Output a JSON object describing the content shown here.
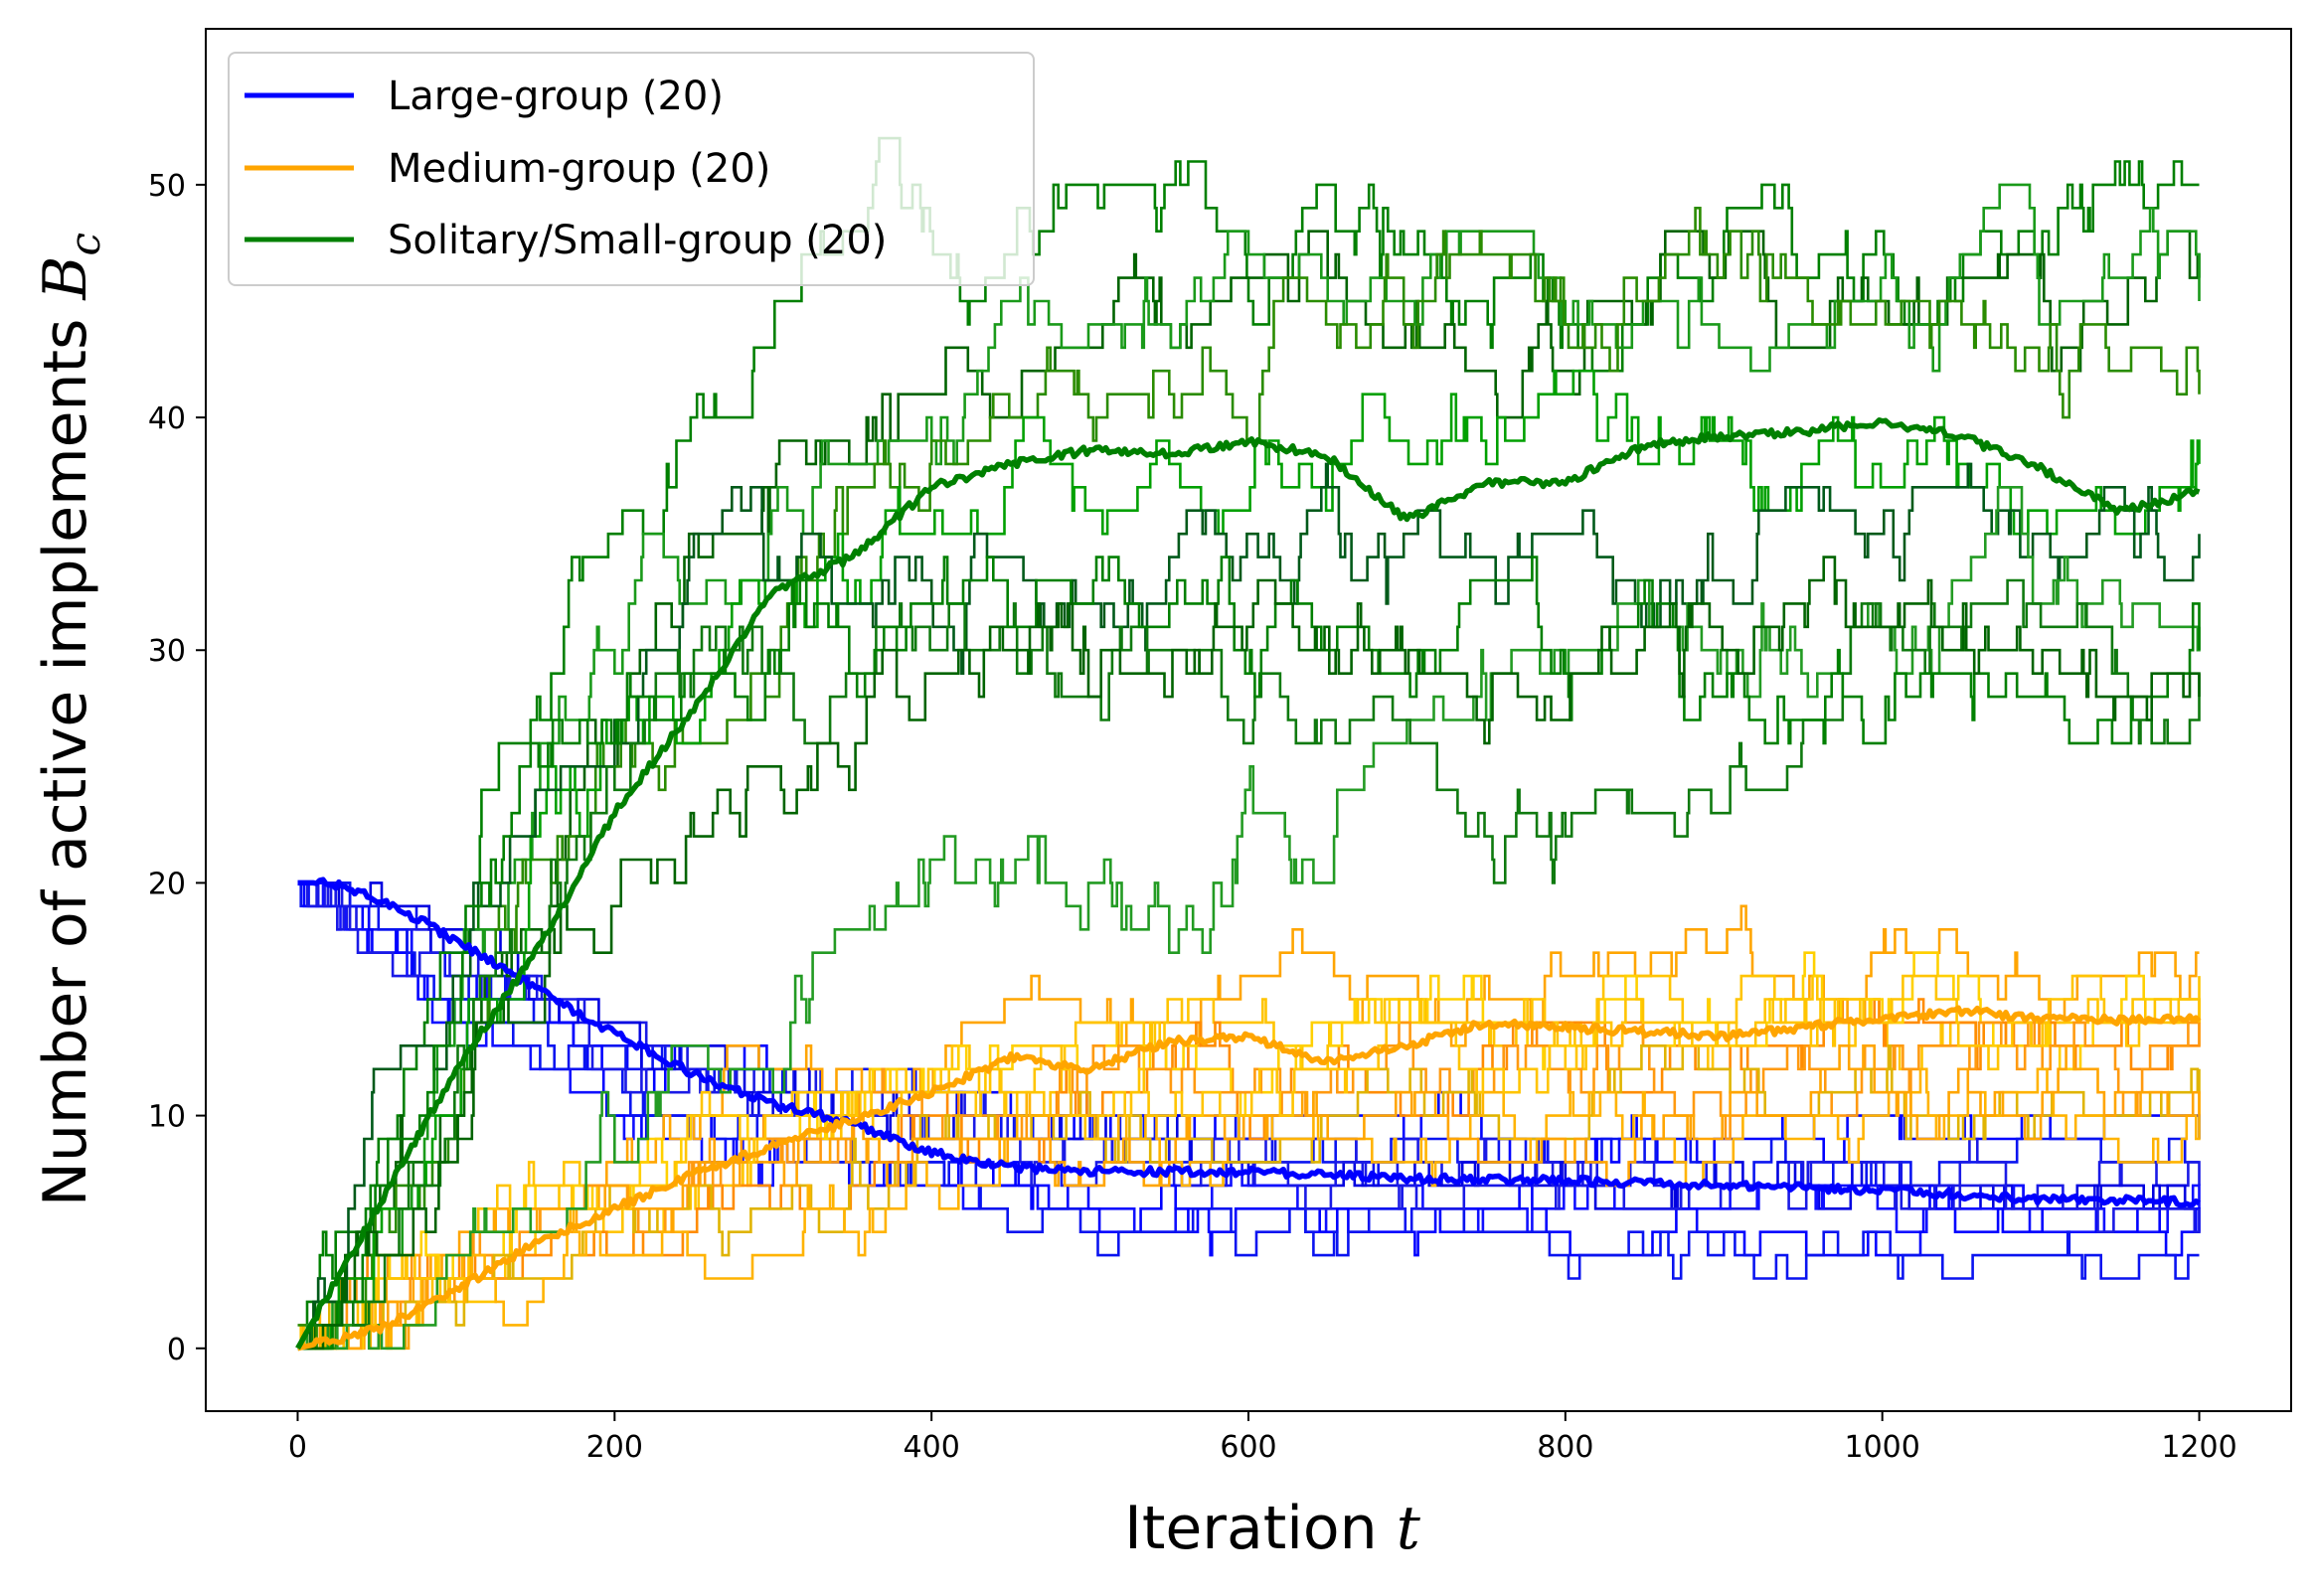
{
  "chart_data": {
    "type": "line",
    "xlabel": "Iteration",
    "xlabel_var": "t",
    "ylabel": "Number of active implements",
    "ylabel_var": "B",
    "ylabel_var_sub": "c",
    "xlim": [
      -58,
      1258
    ],
    "ylim": [
      -2.7,
      56.7
    ],
    "xticks": [
      0,
      200,
      400,
      600,
      800,
      1000,
      1200
    ],
    "yticks": [
      0,
      10,
      20,
      30,
      40,
      50
    ],
    "grid": false,
    "legend_position": "top-left",
    "legend": [
      {
        "label": "Large-group (20)",
        "color": "#0000ff"
      },
      {
        "label": "Medium-group (20)",
        "color": "#ffa500"
      },
      {
        "label": "Solitary/Small-group (20)",
        "color": "#008000"
      }
    ],
    "groups": [
      {
        "name": "Large-group",
        "color": "#0000ff",
        "run_colors": [
          "#0000ff",
          "#0a14f0",
          "#1a1ae6",
          "#0000e0",
          "#1010ff"
        ],
        "start": 20,
        "runs": [
          {
            "seed": 11,
            "n": 20,
            "sigma": 0.7,
            "end": 9
          },
          {
            "seed": 12,
            "n": 20,
            "sigma": 0.7,
            "end": 8
          },
          {
            "seed": 13,
            "n": 20,
            "sigma": 0.7,
            "end": 7
          },
          {
            "seed": 14,
            "n": 20,
            "sigma": 0.7,
            "end": 6
          },
          {
            "seed": 15,
            "n": 20,
            "sigma": 0.7,
            "end": 6
          },
          {
            "seed": 16,
            "n": 20,
            "sigma": 0.7,
            "end": 5
          },
          {
            "seed": 17,
            "n": 20,
            "sigma": 0.7,
            "end": 4
          },
          {
            "seed": 18,
            "n": 20,
            "sigma": 0.7,
            "end": 6
          }
        ],
        "mean": {
          "x": [
            0,
            20,
            40,
            60,
            80,
            100,
            150,
            200,
            250,
            300,
            350,
            400,
            450,
            500,
            600,
            700,
            800,
            900,
            1000,
            1100,
            1200
          ],
          "y": [
            20,
            20,
            19.6,
            19,
            18.3,
            17.5,
            15.5,
            13.5,
            11.8,
            10.5,
            9.7,
            8.4,
            7.8,
            7.6,
            7.6,
            7.3,
            7.2,
            7.0,
            6.8,
            6.4,
            6.3
          ]
        }
      },
      {
        "name": "Medium-group",
        "color": "#ffa500",
        "run_colors": [
          "#ffa500",
          "#ffc400",
          "#ff8c00",
          "#ffd000",
          "#ff9a10",
          "#e0b400",
          "#ffb300"
        ],
        "start": 0,
        "runs": [
          {
            "seed": 21,
            "n": 20,
            "sigma": 1.0,
            "end": 17
          },
          {
            "seed": 22,
            "n": 20,
            "sigma": 1.0,
            "end": 16
          },
          {
            "seed": 23,
            "n": 20,
            "sigma": 1.0,
            "end": 15
          },
          {
            "seed": 24,
            "n": 20,
            "sigma": 1.0,
            "end": 14
          },
          {
            "seed": 25,
            "n": 20,
            "sigma": 1.0,
            "end": 13
          },
          {
            "seed": 26,
            "n": 20,
            "sigma": 1.0,
            "end": 12
          },
          {
            "seed": 27,
            "n": 20,
            "sigma": 1.0,
            "end": 11
          },
          {
            "seed": 28,
            "n": 20,
            "sigma": 1.0,
            "end": 10
          },
          {
            "seed": 29,
            "n": 20,
            "sigma": 1.0,
            "end": 14
          }
        ],
        "mean": {
          "x": [
            0,
            50,
            100,
            150,
            200,
            250,
            300,
            350,
            400,
            450,
            500,
            550,
            600,
            650,
            700,
            750,
            800,
            850,
            900,
            950,
            1000,
            1050,
            1100,
            1150,
            1200
          ],
          "y": [
            0,
            0.8,
            2.5,
            4.5,
            6.0,
            7.5,
            8.7,
            9.8,
            11.0,
            12.5,
            12.0,
            13.2,
            13.4,
            12.3,
            13.0,
            14.0,
            13.8,
            13.6,
            13.4,
            13.8,
            14.2,
            14.5,
            14.2,
            14.1,
            14.2
          ]
        }
      },
      {
        "name": "Solitary/Small-group",
        "color": "#008000",
        "run_colors": [
          "#008000",
          "#006400",
          "#1a9a1a",
          "#2a8c00",
          "#00a000",
          "#005a1a",
          "#239b23",
          "#0f7a0f"
        ],
        "start": 0,
        "runs": [
          {
            "seed": 31,
            "n": 54,
            "sigma": 1.6,
            "end": 50,
            "profile": [
              [
                0,
                0
              ],
              [
                120,
                30
              ],
              [
                300,
                45
              ],
              [
                500,
                50
              ],
              [
                800,
                45
              ],
              [
                1200,
                50
              ]
            ]
          },
          {
            "seed": 32,
            "n": 54,
            "sigma": 1.6,
            "end": 46,
            "profile": [
              [
                0,
                0
              ],
              [
                200,
                30
              ],
              [
                450,
                45
              ],
              [
                700,
                46
              ],
              [
                1000,
                44
              ],
              [
                1200,
                46
              ]
            ]
          },
          {
            "seed": 33,
            "n": 54,
            "sigma": 1.6,
            "end": 45,
            "profile": [
              [
                0,
                0
              ],
              [
                150,
                28
              ],
              [
                400,
                40
              ],
              [
                650,
                47
              ],
              [
                900,
                44
              ],
              [
                1200,
                45
              ]
            ]
          },
          {
            "seed": 34,
            "n": 54,
            "sigma": 1.6,
            "end": 41,
            "profile": [
              [
                0,
                0
              ],
              [
                180,
                25
              ],
              [
                380,
                38
              ],
              [
                600,
                45
              ],
              [
                900,
                46
              ],
              [
                1200,
                41
              ]
            ]
          },
          {
            "seed": 35,
            "n": 54,
            "sigma": 1.6,
            "end": 38,
            "profile": [
              [
                0,
                0
              ],
              [
                200,
                28
              ],
              [
                400,
                35
              ],
              [
                700,
                40
              ],
              [
                1000,
                38
              ],
              [
                1200,
                38
              ]
            ]
          },
          {
            "seed": 36,
            "n": 54,
            "sigma": 1.6,
            "end": 35,
            "profile": [
              [
                0,
                0
              ],
              [
                150,
                30
              ],
              [
                350,
                33
              ],
              [
                700,
                33
              ],
              [
                1000,
                35
              ],
              [
                1200,
                35
              ]
            ]
          },
          {
            "seed": 37,
            "n": 54,
            "sigma": 1.6,
            "end": 31,
            "profile": [
              [
                0,
                0
              ],
              [
                300,
                15
              ],
              [
                400,
                22
              ],
              [
                550,
                18
              ],
              [
                700,
                28
              ],
              [
                900,
                32
              ],
              [
                1200,
                31
              ]
            ]
          },
          {
            "seed": 38,
            "n": 54,
            "sigma": 1.6,
            "end": 29,
            "profile": [
              [
                0,
                0
              ],
              [
                200,
                28
              ],
              [
                500,
                30
              ],
              [
                780,
                22
              ],
              [
                950,
                30
              ],
              [
                1200,
                29
              ]
            ]
          },
          {
            "seed": 39,
            "n": 54,
            "sigma": 1.6,
            "end": 30,
            "profile": [
              [
                0,
                0
              ],
              [
                120,
                25
              ],
              [
                300,
                30
              ],
              [
                600,
                32
              ],
              [
                900,
                28
              ],
              [
                1200,
                30
              ]
            ]
          },
          {
            "seed": 40,
            "n": 54,
            "sigma": 1.6,
            "end": 28,
            "profile": [
              [
                0,
                0
              ],
              [
                150,
                20
              ],
              [
                400,
                30
              ],
              [
                700,
                30
              ],
              [
                1000,
                30
              ],
              [
                1200,
                28
              ]
            ]
          }
        ],
        "mean": {
          "x": [
            0,
            50,
            100,
            150,
            200,
            250,
            300,
            350,
            400,
            450,
            500,
            550,
            600,
            650,
            700,
            750,
            800,
            850,
            900,
            950,
            1000,
            1050,
            1100,
            1150,
            1200
          ],
          "y": [
            0,
            6,
            12,
            17,
            23,
            27.5,
            32.5,
            34,
            37,
            38,
            38.6,
            38.4,
            39,
            38.3,
            35.6,
            37.2,
            37.2,
            38.8,
            39.2,
            39.4,
            39.8,
            39.2,
            37.8,
            36,
            36.8
          ]
        }
      }
    ]
  }
}
